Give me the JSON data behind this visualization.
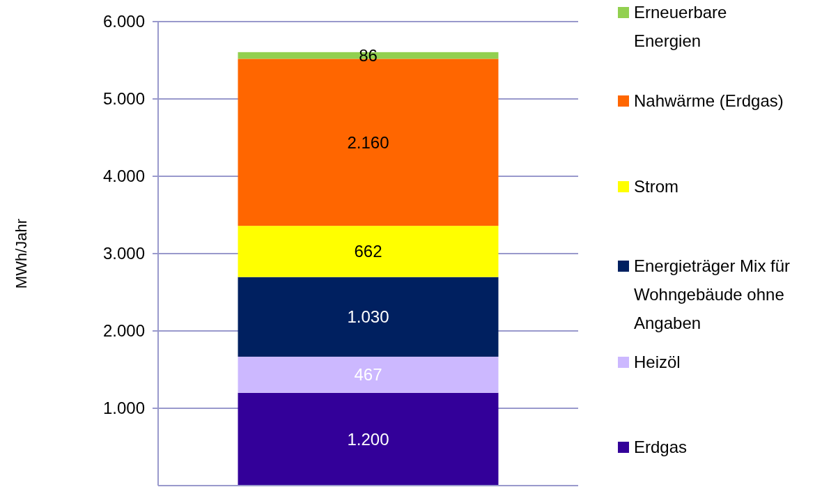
{
  "chart_data": {
    "type": "bar",
    "stacked": true,
    "categories": [
      null
    ],
    "ylabel": "MWh/Jahr",
    "ylim": [
      0,
      6000
    ],
    "yticks": [
      {
        "value": 1000,
        "label": "1.000"
      },
      {
        "value": 2000,
        "label": "2.000"
      },
      {
        "value": 3000,
        "label": "3.000"
      },
      {
        "value": 4000,
        "label": "4.000"
      },
      {
        "value": 5000,
        "label": "5.000"
      },
      {
        "value": 6000,
        "label": "6.000"
      }
    ],
    "grid": "y",
    "legend": "right",
    "series": [
      {
        "name": "Erdgas",
        "color": "#330099",
        "values": [
          1200
        ],
        "value_labels": [
          "1.200"
        ]
      },
      {
        "name": "Heizöl",
        "color": "#ccb8ff",
        "values": [
          467
        ],
        "value_labels": [
          "467"
        ]
      },
      {
        "name": "Energieträger Mix für Wohngebäude ohne Angaben",
        "color": "#002060",
        "values": [
          1030
        ],
        "value_labels": [
          "1.030"
        ]
      },
      {
        "name": "Strom",
        "color": "#ffff00",
        "values": [
          662
        ],
        "value_labels": [
          "662"
        ]
      },
      {
        "name": "Nahwärme (Erdgas)",
        "color": "#ff6600",
        "values": [
          2160
        ],
        "value_labels": [
          "2.160"
        ]
      },
      {
        "name": "Erneuerbare Energien",
        "color": "#92d050",
        "values": [
          86
        ],
        "value_labels": [
          "86"
        ]
      }
    ]
  }
}
